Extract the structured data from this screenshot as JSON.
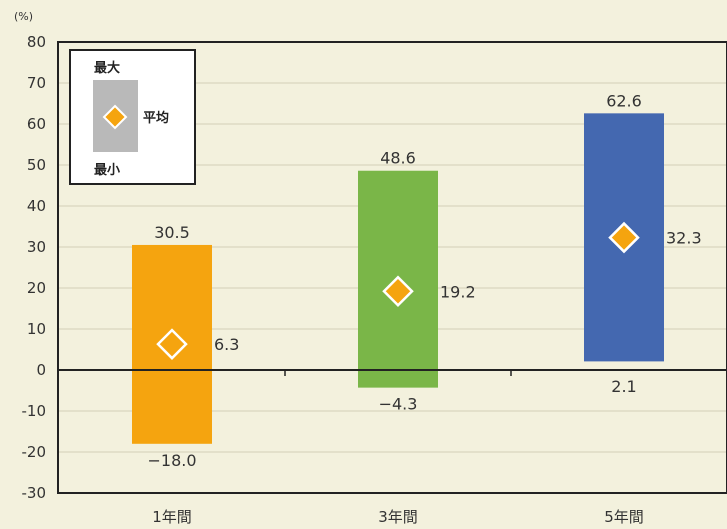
{
  "chart_data": {
    "type": "bar",
    "unit_label": "(%)",
    "categories": [
      "1年間",
      "3年間",
      "5年間"
    ],
    "series": [
      {
        "values": [
          30.5,
          48.6,
          62.6
        ]
      },
      {
        "values": [
          6.3,
          19.2,
          32.3
        ]
      },
      {
        "values": [
          -18.0,
          -4.3,
          2.1
        ]
      }
    ],
    "value_labels": {
      "max": [
        "30.5",
        "48.6",
        "62.6"
      ],
      "mean": [
        "6.3",
        "19.2",
        "32.3"
      ],
      "min": [
        "−18.0",
        "−4.3",
        "2.1"
      ]
    },
    "ylim": [
      -30,
      80
    ],
    "yticks": [
      80,
      70,
      60,
      50,
      40,
      30,
      20,
      10,
      0,
      -10,
      -20,
      -30
    ],
    "grid": true,
    "legend": {
      "position": "top-left",
      "max_label": "最大",
      "mean_label": "平均",
      "min_label": "最小"
    },
    "colors": [
      "#f5a40f",
      "#7ab648",
      "#4468b0"
    ],
    "marker_color": "#f5a40f",
    "marker_edge": "#ffffff"
  }
}
